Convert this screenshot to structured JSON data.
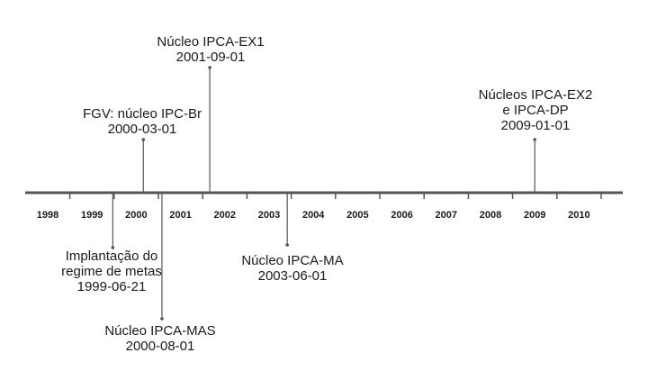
{
  "timeline": {
    "years": [
      "1998",
      "1999",
      "2000",
      "2001",
      "2002",
      "2003",
      "2004",
      "2005",
      "2006",
      "2007",
      "2008",
      "2009",
      "2010"
    ],
    "events": [
      {
        "lines": [
          "Implantação do",
          "regime de metas",
          "1999-06-21"
        ],
        "year_pos": 1999.47
      },
      {
        "lines": [
          "FGV: núcleo IPC-Br",
          "2000-03-01"
        ],
        "year_pos": 2000.16
      },
      {
        "lines": [
          "Núcleo IPCA-MAS",
          "2000-08-01"
        ],
        "year_pos": 2000.58
      },
      {
        "lines": [
          "Núcleo IPCA-EX1",
          "2001-09-01"
        ],
        "year_pos": 2001.66
      },
      {
        "lines": [
          "Núcleo IPCA-MA",
          "2003-06-01"
        ],
        "year_pos": 2003.41
      },
      {
        "lines": [
          "Núcleos IPCA-EX2",
          "e IPCA-DP",
          "2009-01-01"
        ],
        "year_pos": 2009.0
      }
    ],
    "colors": {
      "axis": "#555555",
      "text": "#1a1a1a"
    }
  }
}
